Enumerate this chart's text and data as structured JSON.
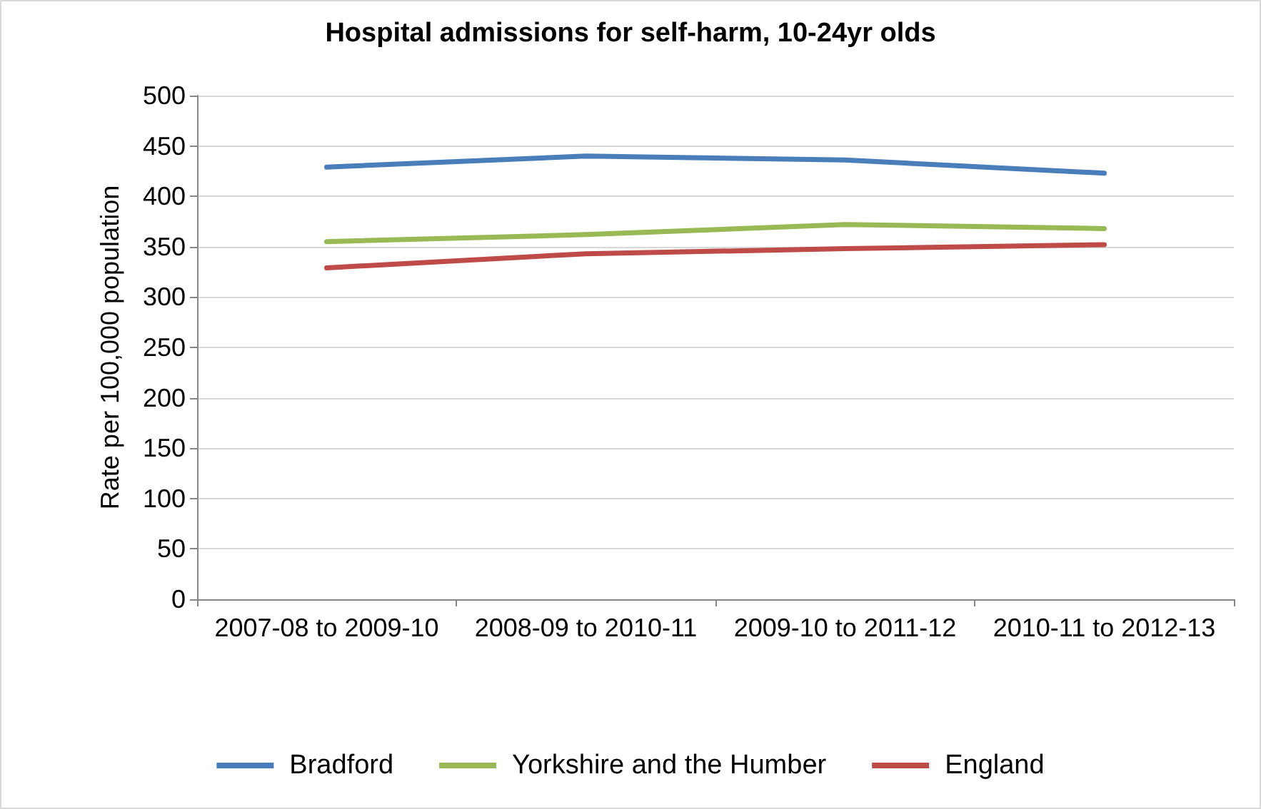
{
  "chart_data": {
    "type": "line",
    "title": "Hospital admissions for self-harm, 10-24yr olds",
    "ylabel": "Rate per 100,000 population",
    "categories": [
      "2007-08 to 2009-10",
      "2008-09 to 2010-11",
      "2009-10 to 2011-12",
      "2010-11 to 2012-13"
    ],
    "series": [
      {
        "name": "Bradford",
        "color": "#4a7ebb",
        "values": [
          429,
          440,
          436,
          423
        ]
      },
      {
        "name": "Yorkshire and the Humber",
        "color": "#98b954",
        "values": [
          355,
          362,
          372,
          368
        ]
      },
      {
        "name": "England",
        "color": "#be4b48",
        "values": [
          329,
          343,
          348,
          352
        ]
      }
    ],
    "ylim": [
      0,
      500
    ],
    "yticks": [
      0,
      50,
      100,
      150,
      200,
      250,
      300,
      350,
      400,
      450,
      500
    ],
    "grid": "y",
    "legend": "bottom",
    "marker": "none",
    "line_style": "solid"
  }
}
